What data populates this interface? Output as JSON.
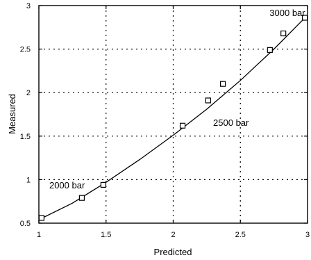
{
  "chart_data": {
    "type": "scatter",
    "title": "",
    "xlabel": "Predicted",
    "ylabel": "Measured",
    "xlim": [
      1,
      3
    ],
    "ylim": [
      0.5,
      3
    ],
    "x_ticks": [
      1,
      1.5,
      2,
      2.5,
      3
    ],
    "y_ticks": [
      0.5,
      1,
      1.5,
      2,
      2.5,
      3
    ],
    "x_tick_labels": [
      "1",
      "1.5",
      "2",
      "2.5",
      "3"
    ],
    "y_tick_labels": [
      "0.5",
      "1",
      "1.5",
      "2",
      "2.5",
      "3"
    ],
    "grid": true,
    "series": [
      {
        "marker": "square-open",
        "x": [
          1.02,
          1.32,
          1.48,
          2.07,
          2.26,
          2.37,
          2.72,
          2.82,
          2.98
        ],
        "y": [
          0.56,
          0.79,
          0.94,
          1.62,
          1.91,
          2.1,
          2.49,
          2.68,
          2.86
        ]
      },
      {
        "style": "line",
        "x": [
          1.0,
          1.25,
          1.5,
          1.75,
          2.0,
          2.25,
          2.5,
          2.75,
          3.0
        ],
        "y": [
          0.54,
          0.73,
          0.97,
          1.23,
          1.51,
          1.81,
          2.14,
          2.5,
          2.89
        ]
      }
    ],
    "annotations": [
      {
        "text": "2000 bar",
        "x": 1.21,
        "y": 0.9
      },
      {
        "text": "2500 bar",
        "x": 2.43,
        "y": 1.62
      },
      {
        "text": "3000 bar",
        "x": 2.85,
        "y": 2.88
      }
    ]
  }
}
